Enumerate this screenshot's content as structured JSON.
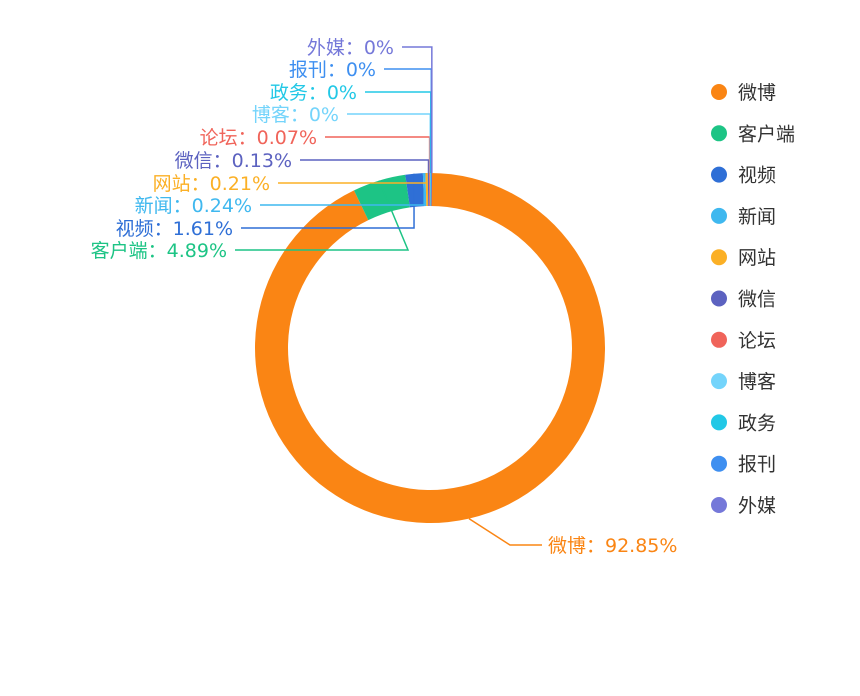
{
  "chart_data": {
    "type": "pie",
    "variant": "donut",
    "categories": [
      "微博",
      "客户端",
      "视频",
      "新闻",
      "网站",
      "微信",
      "论坛",
      "博客",
      "政务",
      "报刊",
      "外媒"
    ],
    "values": [
      92.85,
      4.89,
      1.61,
      0.24,
      0.21,
      0.13,
      0.07,
      0,
      0,
      0,
      0
    ],
    "value_labels": [
      "92.85%",
      "4.89%",
      "1.61%",
      "0.24%",
      "0.21%",
      "0.13%",
      "0.07%",
      "0%",
      "0%",
      "0%",
      "0%"
    ],
    "colors": [
      "#fa8514",
      "#1dc485",
      "#2f6fd6",
      "#3fb8ef",
      "#fbb026",
      "#5c62c0",
      "#f0645a",
      "#74d4fb",
      "#22c8e6",
      "#3e8ff0",
      "#7578d9"
    ],
    "label_separator": "：",
    "legend": {
      "position": "right",
      "entries": [
        "微博",
        "客户端",
        "视频",
        "新闻",
        "网站",
        "微信",
        "论坛",
        "博客",
        "政务",
        "报刊",
        "外媒"
      ]
    }
  }
}
